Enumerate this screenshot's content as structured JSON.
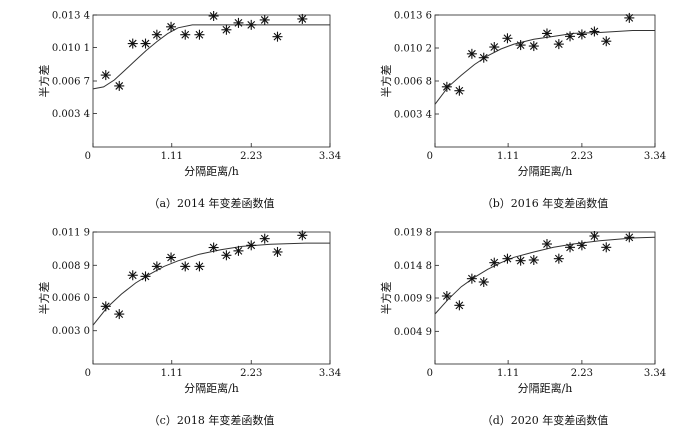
{
  "chart_data": [
    {
      "type": "scatter",
      "caption": "（a）2014 年变差函数值",
      "xlabel": "分隔距离/h",
      "ylabel": "半方差",
      "xlim": [
        0,
        3.34
      ],
      "ylim": [
        0,
        0.0134
      ],
      "xticks": [
        "0",
        "1.11",
        "2.23",
        "3.34"
      ],
      "yticks": [
        "0.003 4",
        "0.006 7",
        "0.010 1",
        "0.013 4"
      ],
      "ytick_values": [
        0.0034,
        0.0067,
        0.0101,
        0.0134
      ],
      "grid": false,
      "series": [
        {
          "points": [
            [
              0.18,
              0.0073
            ],
            [
              0.37,
              0.0062
            ],
            [
              0.56,
              0.0105
            ],
            [
              0.74,
              0.0105
            ],
            [
              0.9,
              0.0114
            ],
            [
              1.1,
              0.0122
            ],
            [
              1.3,
              0.0114
            ],
            [
              1.5,
              0.0114
            ],
            [
              1.7,
              0.0133
            ],
            [
              1.88,
              0.0119
            ],
            [
              2.05,
              0.0126
            ],
            [
              2.23,
              0.0124
            ],
            [
              2.42,
              0.0129
            ],
            [
              2.6,
              0.0112
            ],
            [
              2.95,
              0.013
            ]
          ]
        },
        {
          "curve": [
            [
              0,
              0.0059
            ],
            [
              0.15,
              0.0061
            ],
            [
              0.3,
              0.0068
            ],
            [
              0.45,
              0.0078
            ],
            [
              0.6,
              0.0088
            ],
            [
              0.75,
              0.0098
            ],
            [
              0.9,
              0.0107
            ],
            [
              1.05,
              0.0115
            ],
            [
              1.2,
              0.0121
            ],
            [
              1.4,
              0.0124
            ],
            [
              1.6,
              0.0124
            ],
            [
              3.34,
              0.0124
            ]
          ]
        }
      ]
    },
    {
      "type": "scatter",
      "caption": "（b）2016 年变差函数值",
      "xlabel": "分隔距离/h",
      "ylabel": "半方差",
      "xlim": [
        0,
        3.34
      ],
      "ylim": [
        0,
        0.0136
      ],
      "xticks": [
        "0",
        "1.11",
        "2.23",
        "3.34"
      ],
      "yticks": [
        "0.003 4",
        "0.006 8",
        "0.010 2",
        "0.013 6"
      ],
      "ytick_values": [
        0.0034,
        0.0068,
        0.0102,
        0.0136
      ],
      "grid": false,
      "series": [
        {
          "points": [
            [
              0.18,
              0.0062
            ],
            [
              0.37,
              0.0058
            ],
            [
              0.56,
              0.0096
            ],
            [
              0.74,
              0.0092
            ],
            [
              0.9,
              0.0103
            ],
            [
              1.1,
              0.0112
            ],
            [
              1.3,
              0.0105
            ],
            [
              1.5,
              0.0104
            ],
            [
              1.7,
              0.0117
            ],
            [
              1.88,
              0.0106
            ],
            [
              2.05,
              0.0114
            ],
            [
              2.23,
              0.0116
            ],
            [
              2.42,
              0.0119
            ],
            [
              2.6,
              0.0109
            ],
            [
              2.95,
              0.0133
            ]
          ]
        },
        {
          "curve": [
            [
              0,
              0.0044
            ],
            [
              0.2,
              0.0062
            ],
            [
              0.4,
              0.0074
            ],
            [
              0.6,
              0.0085
            ],
            [
              0.8,
              0.0094
            ],
            [
              1.0,
              0.0101
            ],
            [
              1.2,
              0.0106
            ],
            [
              1.5,
              0.0111
            ],
            [
              1.8,
              0.0114
            ],
            [
              2.1,
              0.0117
            ],
            [
              2.5,
              0.0118
            ],
            [
              3.0,
              0.012
            ],
            [
              3.34,
              0.012
            ]
          ]
        }
      ]
    },
    {
      "type": "scatter",
      "caption": "（c）2018 年变差函数值",
      "xlabel": "分隔距离/h",
      "ylabel": "半方差",
      "xlim": [
        0,
        3.34
      ],
      "ylim": [
        0,
        0.0119
      ],
      "xticks": [
        "0",
        "1.11",
        "2.23",
        "3.34"
      ],
      "yticks": [
        "0.003 0",
        "0.006 0",
        "0.008 9",
        "0.011 9"
      ],
      "ytick_values": [
        0.003,
        0.006,
        0.0089,
        0.0119
      ],
      "grid": false,
      "series": [
        {
          "points": [
            [
              0.18,
              0.0052
            ],
            [
              0.37,
              0.0045
            ],
            [
              0.56,
              0.008
            ],
            [
              0.74,
              0.0079
            ],
            [
              0.9,
              0.0088
            ],
            [
              1.1,
              0.0096
            ],
            [
              1.3,
              0.0088
            ],
            [
              1.5,
              0.0088
            ],
            [
              1.7,
              0.0105
            ],
            [
              1.88,
              0.0098
            ],
            [
              2.05,
              0.0102
            ],
            [
              2.23,
              0.0107
            ],
            [
              2.42,
              0.0113
            ],
            [
              2.6,
              0.0101
            ],
            [
              2.95,
              0.0116
            ]
          ]
        },
        {
          "curve": [
            [
              0,
              0.0035
            ],
            [
              0.2,
              0.0051
            ],
            [
              0.4,
              0.0063
            ],
            [
              0.6,
              0.0073
            ],
            [
              0.8,
              0.0081
            ],
            [
              1.0,
              0.0088
            ],
            [
              1.2,
              0.0093
            ],
            [
              1.5,
              0.0099
            ],
            [
              1.8,
              0.0103
            ],
            [
              2.1,
              0.0106
            ],
            [
              2.5,
              0.0108
            ],
            [
              3.0,
              0.0109
            ],
            [
              3.34,
              0.0109
            ]
          ]
        }
      ]
    },
    {
      "type": "scatter",
      "caption": "（d）2020 年变差函数值",
      "xlabel": "分隔距离/h",
      "ylabel": "半方差",
      "xlim": [
        0,
        3.34
      ],
      "ylim": [
        0,
        0.0198
      ],
      "xticks": [
        "0",
        "1.11",
        "2.23",
        "3.34"
      ],
      "yticks": [
        "0.004 9",
        "0.009 9",
        "0.014 8",
        "0.019 8"
      ],
      "ytick_values": [
        0.0049,
        0.0099,
        0.0148,
        0.0198
      ],
      "grid": false,
      "series": [
        {
          "points": [
            [
              0.18,
              0.0102
            ],
            [
              0.37,
              0.0088
            ],
            [
              0.56,
              0.0128
            ],
            [
              0.74,
              0.0123
            ],
            [
              0.9,
              0.0152
            ],
            [
              1.1,
              0.0158
            ],
            [
              1.3,
              0.0155
            ],
            [
              1.5,
              0.0156
            ],
            [
              1.7,
              0.018
            ],
            [
              1.88,
              0.0158
            ],
            [
              2.05,
              0.0175
            ],
            [
              2.23,
              0.0178
            ],
            [
              2.42,
              0.0192
            ],
            [
              2.6,
              0.0175
            ],
            [
              2.95,
              0.019
            ]
          ]
        },
        {
          "curve": [
            [
              0,
              0.0075
            ],
            [
              0.2,
              0.0097
            ],
            [
              0.4,
              0.0116
            ],
            [
              0.6,
              0.013
            ],
            [
              0.8,
              0.0142
            ],
            [
              1.0,
              0.0152
            ],
            [
              1.2,
              0.016
            ],
            [
              1.5,
              0.0168
            ],
            [
              1.8,
              0.0175
            ],
            [
              2.1,
              0.018
            ],
            [
              2.5,
              0.0185
            ],
            [
              3.0,
              0.0189
            ],
            [
              3.34,
              0.019
            ]
          ]
        }
      ]
    }
  ]
}
